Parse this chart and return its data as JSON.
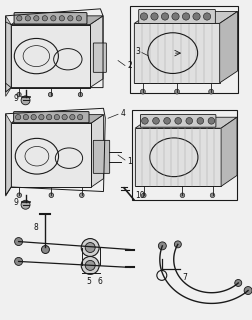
{
  "bg_color": "#f0f0f0",
  "line_color": "#1a1a1a",
  "label_color": "#111111",
  "fig_width": 2.53,
  "fig_height": 3.2,
  "dpi": 100,
  "gray_fill": "#d8d8d8",
  "light_fill": "#e8e8e8",
  "dark_fill": "#b0b0b0",
  "hatch_color": "#999999",
  "font_size": 5.5
}
